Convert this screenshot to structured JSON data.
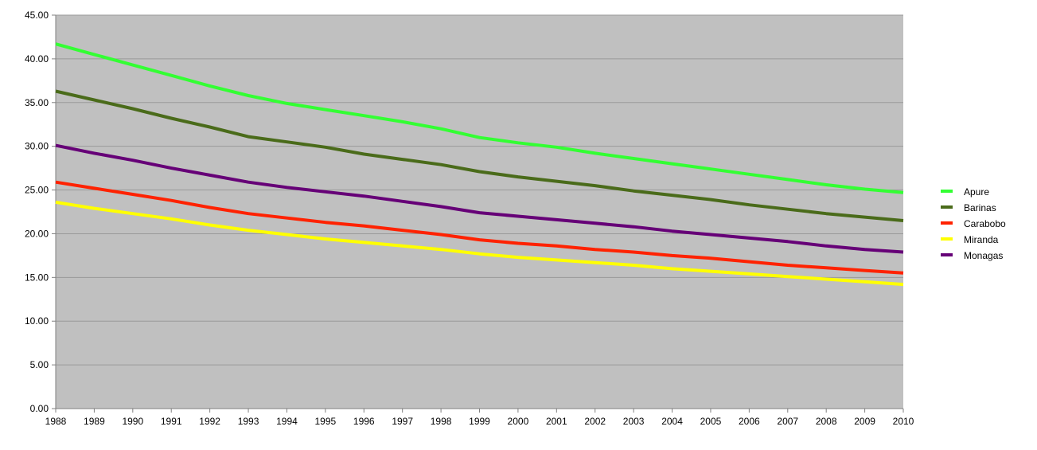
{
  "chart_data": {
    "type": "line",
    "title": "",
    "xlabel": "",
    "ylabel": "",
    "ylim": [
      0,
      45
    ],
    "yticks": [
      "0.00",
      "5.00",
      "10.00",
      "15.00",
      "20.00",
      "25.00",
      "30.00",
      "35.00",
      "40.00",
      "45.00"
    ],
    "ytick_values": [
      0,
      5,
      10,
      15,
      20,
      25,
      30,
      35,
      40,
      45
    ],
    "x": [
      "1988",
      "1989",
      "1990",
      "1991",
      "1992",
      "1993",
      "1994",
      "1995",
      "1996",
      "1997",
      "1998",
      "1999",
      "2000",
      "2001",
      "2002",
      "2003",
      "2004",
      "2005",
      "2006",
      "2007",
      "2008",
      "2009",
      "2010"
    ],
    "grid": "horizontal",
    "legend_position": "right",
    "background": "#c0c0c0",
    "series": [
      {
        "name": "Apure",
        "color": "#33ff33",
        "values": [
          41.7,
          40.5,
          39.3,
          38.1,
          36.9,
          35.8,
          34.9,
          34.2,
          33.5,
          32.8,
          32.0,
          31.0,
          30.4,
          29.9,
          29.2,
          28.6,
          28.0,
          27.4,
          26.8,
          26.2,
          25.6,
          25.1,
          24.7
        ]
      },
      {
        "name": "Barinas",
        "color": "#4a6b1a",
        "values": [
          36.3,
          35.3,
          34.3,
          33.2,
          32.2,
          31.1,
          30.5,
          29.9,
          29.1,
          28.5,
          27.9,
          27.1,
          26.5,
          26.0,
          25.5,
          24.9,
          24.4,
          23.9,
          23.3,
          22.8,
          22.3,
          21.9,
          21.5
        ]
      },
      {
        "name": "Carabobo",
        "color": "#ff2200",
        "values": [
          25.9,
          25.2,
          24.5,
          23.8,
          23.0,
          22.3,
          21.8,
          21.3,
          20.9,
          20.4,
          19.9,
          19.3,
          18.9,
          18.6,
          18.2,
          17.9,
          17.5,
          17.2,
          16.8,
          16.4,
          16.1,
          15.8,
          15.5
        ]
      },
      {
        "name": "Miranda",
        "color": "#ffff00",
        "values": [
          23.6,
          22.9,
          22.3,
          21.7,
          21.0,
          20.4,
          19.9,
          19.4,
          19.0,
          18.6,
          18.2,
          17.7,
          17.3,
          17.0,
          16.7,
          16.4,
          16.0,
          15.7,
          15.4,
          15.1,
          14.8,
          14.5,
          14.2
        ]
      },
      {
        "name": "Monagas",
        "color": "#660077",
        "values": [
          30.1,
          29.2,
          28.4,
          27.5,
          26.7,
          25.9,
          25.3,
          24.8,
          24.3,
          23.7,
          23.1,
          22.4,
          22.0,
          21.6,
          21.2,
          20.8,
          20.3,
          19.9,
          19.5,
          19.1,
          18.6,
          18.2,
          17.9
        ]
      }
    ]
  }
}
